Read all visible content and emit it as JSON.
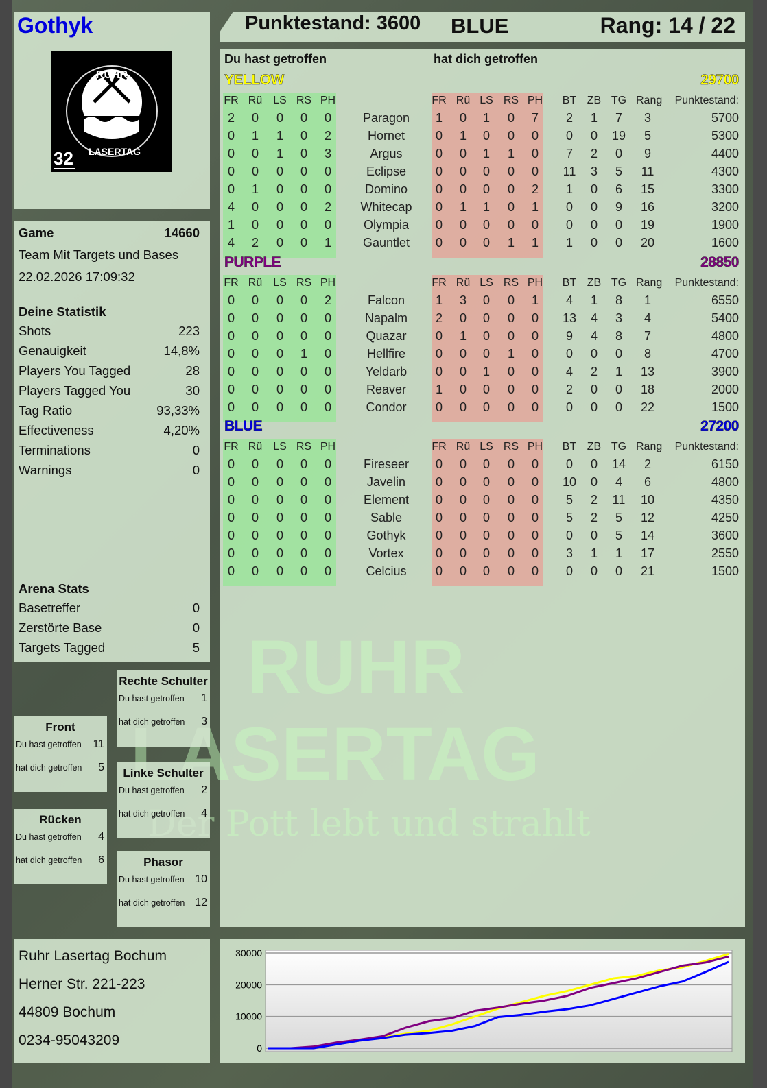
{
  "player": {
    "name": "Gothyk",
    "logo_text": "RUHR LASERTAG",
    "logo_number": "32"
  },
  "header": {
    "score_label": "Punktestand: 3600",
    "team": "BLUE",
    "rank_label": "Rang: 14 / 22"
  },
  "table": {
    "you_hit_label": "Du hast getroffen",
    "hit_you_label": "hat dich getroffen",
    "zone_headers": [
      "FR",
      "Rü",
      "LS",
      "RS",
      "PH"
    ],
    "stat_headers": [
      "BT",
      "ZB",
      "TG",
      "Rang",
      "Punktestand:"
    ],
    "teams": [
      {
        "name": "YELLOW",
        "score": "29700",
        "color": "#ffff00",
        "players": [
          {
            "name": "Paragon",
            "hit": [
              2,
              0,
              0,
              0,
              0
            ],
            "got": [
              1,
              0,
              1,
              0,
              7
            ],
            "bt": 2,
            "zb": 1,
            "tg": 7,
            "rang": 3,
            "points": 5700
          },
          {
            "name": "Hornet",
            "hit": [
              0,
              1,
              1,
              0,
              2
            ],
            "got": [
              0,
              1,
              0,
              0,
              0
            ],
            "bt": 0,
            "zb": 0,
            "tg": 19,
            "rang": 5,
            "points": 5300
          },
          {
            "name": "Argus",
            "hit": [
              0,
              0,
              1,
              0,
              3
            ],
            "got": [
              0,
              0,
              1,
              1,
              0
            ],
            "bt": 7,
            "zb": 2,
            "tg": 0,
            "rang": 9,
            "points": 4400
          },
          {
            "name": "Eclipse",
            "hit": [
              0,
              0,
              0,
              0,
              0
            ],
            "got": [
              0,
              0,
              0,
              0,
              0
            ],
            "bt": 11,
            "zb": 3,
            "tg": 5,
            "rang": 11,
            "points": 4300
          },
          {
            "name": "Domino",
            "hit": [
              0,
              1,
              0,
              0,
              0
            ],
            "got": [
              0,
              0,
              0,
              0,
              2
            ],
            "bt": 1,
            "zb": 0,
            "tg": 6,
            "rang": 15,
            "points": 3300
          },
          {
            "name": "Whitecap",
            "hit": [
              4,
              0,
              0,
              0,
              2
            ],
            "got": [
              0,
              1,
              1,
              0,
              1
            ],
            "bt": 0,
            "zb": 0,
            "tg": 9,
            "rang": 16,
            "points": 3200
          },
          {
            "name": "Olympia",
            "hit": [
              1,
              0,
              0,
              0,
              0
            ],
            "got": [
              0,
              0,
              0,
              0,
              0
            ],
            "bt": 0,
            "zb": 0,
            "tg": 0,
            "rang": 19,
            "points": 1900
          },
          {
            "name": "Gauntlet",
            "hit": [
              4,
              2,
              0,
              0,
              1
            ],
            "got": [
              0,
              0,
              0,
              1,
              1
            ],
            "bt": 1,
            "zb": 0,
            "tg": 0,
            "rang": 20,
            "points": 1600
          }
        ]
      },
      {
        "name": "PURPLE",
        "score": "28850",
        "color": "#800080",
        "players": [
          {
            "name": "Falcon",
            "hit": [
              0,
              0,
              0,
              0,
              2
            ],
            "got": [
              1,
              3,
              0,
              0,
              1
            ],
            "bt": 4,
            "zb": 1,
            "tg": 8,
            "rang": 1,
            "points": 6550
          },
          {
            "name": "Napalm",
            "hit": [
              0,
              0,
              0,
              0,
              0
            ],
            "got": [
              2,
              0,
              0,
              0,
              0
            ],
            "bt": 13,
            "zb": 4,
            "tg": 3,
            "rang": 4,
            "points": 5400
          },
          {
            "name": "Quazar",
            "hit": [
              0,
              0,
              0,
              0,
              0
            ],
            "got": [
              0,
              1,
              0,
              0,
              0
            ],
            "bt": 9,
            "zb": 4,
            "tg": 8,
            "rang": 7,
            "points": 4800
          },
          {
            "name": "Hellfire",
            "hit": [
              0,
              0,
              0,
              1,
              0
            ],
            "got": [
              0,
              0,
              0,
              1,
              0
            ],
            "bt": 0,
            "zb": 0,
            "tg": 0,
            "rang": 8,
            "points": 4700
          },
          {
            "name": "Yeldarb",
            "hit": [
              0,
              0,
              0,
              0,
              0
            ],
            "got": [
              0,
              0,
              1,
              0,
              0
            ],
            "bt": 4,
            "zb": 2,
            "tg": 1,
            "rang": 13,
            "points": 3900
          },
          {
            "name": "Reaver",
            "hit": [
              0,
              0,
              0,
              0,
              0
            ],
            "got": [
              1,
              0,
              0,
              0,
              0
            ],
            "bt": 2,
            "zb": 0,
            "tg": 0,
            "rang": 18,
            "points": 2000
          },
          {
            "name": "Condor",
            "hit": [
              0,
              0,
              0,
              0,
              0
            ],
            "got": [
              0,
              0,
              0,
              0,
              0
            ],
            "bt": 0,
            "zb": 0,
            "tg": 0,
            "rang": 22,
            "points": 1500
          }
        ]
      },
      {
        "name": "BLUE",
        "score": "27200",
        "color": "#0000e0",
        "players": [
          {
            "name": "Fireseer",
            "hit": [
              0,
              0,
              0,
              0,
              0
            ],
            "got": [
              0,
              0,
              0,
              0,
              0
            ],
            "bt": 0,
            "zb": 0,
            "tg": 14,
            "rang": 2,
            "points": 6150
          },
          {
            "name": "Javelin",
            "hit": [
              0,
              0,
              0,
              0,
              0
            ],
            "got": [
              0,
              0,
              0,
              0,
              0
            ],
            "bt": 10,
            "zb": 0,
            "tg": 4,
            "rang": 6,
            "points": 4800
          },
          {
            "name": "Element",
            "hit": [
              0,
              0,
              0,
              0,
              0
            ],
            "got": [
              0,
              0,
              0,
              0,
              0
            ],
            "bt": 5,
            "zb": 2,
            "tg": 11,
            "rang": 10,
            "points": 4350
          },
          {
            "name": "Sable",
            "hit": [
              0,
              0,
              0,
              0,
              0
            ],
            "got": [
              0,
              0,
              0,
              0,
              0
            ],
            "bt": 5,
            "zb": 2,
            "tg": 5,
            "rang": 12,
            "points": 4250
          },
          {
            "name": "Gothyk",
            "hit": [
              0,
              0,
              0,
              0,
              0
            ],
            "got": [
              0,
              0,
              0,
              0,
              0
            ],
            "bt": 0,
            "zb": 0,
            "tg": 5,
            "rang": 14,
            "points": 3600
          },
          {
            "name": "Vortex",
            "hit": [
              0,
              0,
              0,
              0,
              0
            ],
            "got": [
              0,
              0,
              0,
              0,
              0
            ],
            "bt": 3,
            "zb": 1,
            "tg": 1,
            "rang": 17,
            "points": 2550
          },
          {
            "name": "Celcius",
            "hit": [
              0,
              0,
              0,
              0,
              0
            ],
            "got": [
              0,
              0,
              0,
              0,
              0
            ],
            "bt": 0,
            "zb": 0,
            "tg": 0,
            "rang": 21,
            "points": 1500
          }
        ]
      }
    ]
  },
  "game": {
    "label": "Game",
    "id": "14660",
    "mode": "Team Mit Targets und Bases",
    "datetime": "22.02.2026 17:09:32"
  },
  "stats": {
    "title": "Deine Statistik",
    "rows": [
      {
        "label": "Shots",
        "value": "223"
      },
      {
        "label": "Genauigkeit",
        "value": "14,8%"
      },
      {
        "label": "Players You Tagged",
        "value": "28"
      },
      {
        "label": "Players Tagged You",
        "value": "30"
      },
      {
        "label": "Tag Ratio",
        "value": "93,33%"
      },
      {
        "label": "Effectiveness",
        "value": "4,20%"
      },
      {
        "label": "Terminations",
        "value": "0"
      },
      {
        "label": "Warnings",
        "value": "0"
      }
    ]
  },
  "arena": {
    "title": "Arena Stats",
    "rows": [
      {
        "label": "Basetreffer",
        "value": "0"
      },
      {
        "label": "Zerstörte Base",
        "value": "0"
      },
      {
        "label": "Targets Tagged",
        "value": "5"
      }
    ]
  },
  "zones": [
    {
      "title": "Rechte Schulter",
      "you_hit_label": "Du hast getroffen",
      "you_hit": "1",
      "hit_you_label": "hat dich getroffen",
      "hit_you": "3"
    },
    {
      "title": "Front",
      "you_hit_label": "Du hast getroffen",
      "you_hit": "11",
      "hit_you_label": "hat dich getroffen",
      "hit_you": "5"
    },
    {
      "title": "Linke Schulter",
      "you_hit_label": "Du hast getroffen",
      "you_hit": "2",
      "hit_you_label": "hat dich getroffen",
      "hit_you": "4"
    },
    {
      "title": "Rücken",
      "you_hit_label": "Du hast getroffen",
      "you_hit": "4",
      "hit_you_label": "hat dich getroffen",
      "hit_you": "6"
    },
    {
      "title": "Phasor",
      "you_hit_label": "Du hast getroffen",
      "you_hit": "10",
      "hit_you_label": "hat dich getroffen",
      "hit_you": "12"
    }
  ],
  "address": {
    "lines": [
      "Ruhr Lasertag Bochum",
      "Herner Str. 221-223",
      "44809 Bochum",
      "0234-95043209"
    ]
  },
  "watermark": {
    "line1": "RUHR",
    "line2": "LASERTAG",
    "slogan": "Der Pott lebt und strahlt"
  },
  "chart_data": {
    "type": "line",
    "ylim": [
      0,
      30000
    ],
    "yticks": [
      "0",
      "10000",
      "20000",
      "30000"
    ],
    "grid": true,
    "x": [
      0,
      1,
      2,
      3,
      4,
      5,
      6,
      7,
      8,
      9,
      10,
      11,
      12,
      13,
      14,
      15,
      16,
      17,
      18,
      19,
      20
    ],
    "series": [
      {
        "color": "#ffff00",
        "values": [
          0,
          0,
          0,
          1200,
          2400,
          3500,
          4600,
          5500,
          7500,
          10000,
          12500,
          14500,
          16500,
          18000,
          20000,
          22000,
          22800,
          24500,
          25500,
          27500,
          29700
        ]
      },
      {
        "color": "#800080",
        "values": [
          0,
          0,
          500,
          1800,
          2700,
          3800,
          6500,
          8500,
          9500,
          11800,
          12800,
          14000,
          15000,
          16500,
          19000,
          20500,
          22000,
          24000,
          26000,
          27000,
          28850
        ]
      },
      {
        "color": "#0000ff",
        "values": [
          0,
          0,
          0,
          1200,
          2400,
          3200,
          4300,
          4800,
          5500,
          7000,
          9800,
          10500,
          11500,
          12300,
          13500,
          15500,
          17500,
          19500,
          21000,
          24000,
          27200
        ]
      }
    ]
  }
}
